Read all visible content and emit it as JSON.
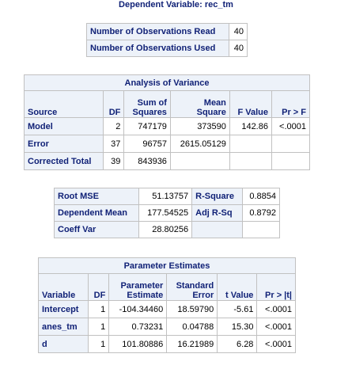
{
  "title": "Dependent Variable: rec_tm",
  "observations": [
    {
      "label": "Number of Observations Read",
      "value": "40"
    },
    {
      "label": "Number of Observations Used",
      "value": "40"
    }
  ],
  "anova": {
    "caption": "Analysis of Variance",
    "headers": {
      "source": "Source",
      "df": "DF",
      "ss_line1": "Sum of",
      "ss_line2": "Squares",
      "ms_line1": "Mean",
      "ms_line2": "Square",
      "f": "F Value",
      "p": "Pr > F"
    },
    "rows": [
      {
        "source": "Model",
        "df": "2",
        "ss": "747179",
        "ms": "373590",
        "f": "142.86",
        "p": "<.0001"
      },
      {
        "source": "Error",
        "df": "37",
        "ss": "96757",
        "ms": "2615.05129",
        "f": "",
        "p": ""
      },
      {
        "source": "Corrected Total",
        "df": "39",
        "ss": "843936",
        "ms": "",
        "f": "",
        "p": ""
      }
    ]
  },
  "fit": {
    "rows": [
      {
        "l1": "Root MSE",
        "v1": "51.13757",
        "l2": "R-Square",
        "v2": "0.8854"
      },
      {
        "l1": "Dependent Mean",
        "v1": "177.54525",
        "l2": "Adj R-Sq",
        "v2": "0.8792"
      },
      {
        "l1": "Coeff Var",
        "v1": "28.80256",
        "l2": "",
        "v2": ""
      }
    ]
  },
  "params": {
    "caption": "Parameter Estimates",
    "headers": {
      "variable": "Variable",
      "df": "DF",
      "est_line1": "Parameter",
      "est_line2": "Estimate",
      "se_line1": "Standard",
      "se_line2": "Error",
      "t": "t Value",
      "p": "Pr > |t|"
    },
    "rows": [
      {
        "variable": "Intercept",
        "df": "1",
        "est": "-104.34460",
        "se": "18.59790",
        "t": "-5.61",
        "p": "<.0001"
      },
      {
        "variable": "anes_tm",
        "df": "1",
        "est": "0.73231",
        "se": "0.04788",
        "t": "15.30",
        "p": "<.0001"
      },
      {
        "variable": "d",
        "df": "1",
        "est": "101.80886",
        "se": "16.21989",
        "t": "6.28",
        "p": "<.0001"
      }
    ]
  }
}
